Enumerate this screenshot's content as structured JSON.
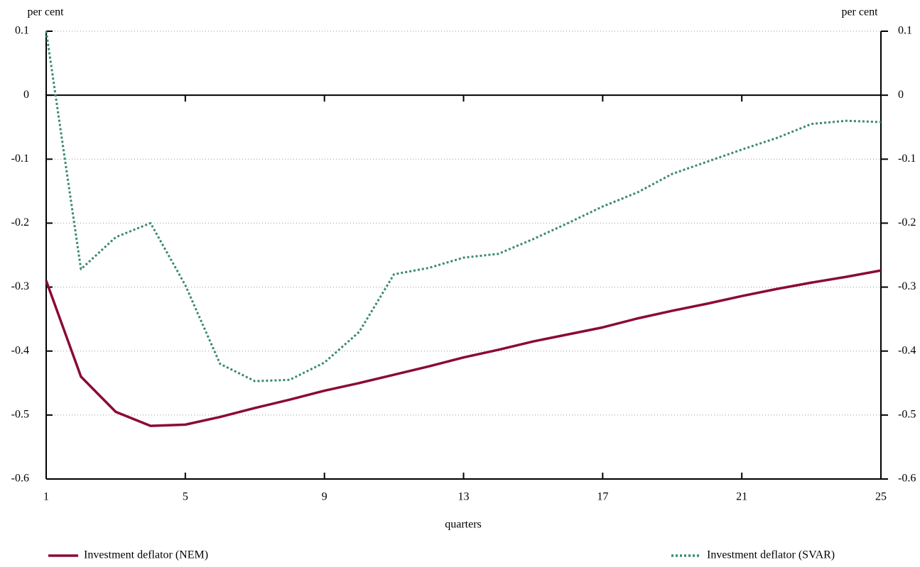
{
  "chart_data": {
    "type": "line",
    "ylabel": "per cent",
    "y2label": "per cent",
    "xlabel": "quarters",
    "x": [
      1,
      2,
      3,
      4,
      5,
      6,
      7,
      8,
      9,
      10,
      11,
      12,
      13,
      14,
      15,
      16,
      17,
      18,
      19,
      20,
      21,
      22,
      23,
      24,
      25
    ],
    "xlim": [
      1,
      25
    ],
    "xticks": [
      1,
      5,
      9,
      13,
      17,
      21,
      25
    ],
    "ylim": [
      -0.6,
      0.1
    ],
    "yticks": [
      0.1,
      0,
      -0.1,
      -0.2,
      -0.3,
      -0.4,
      -0.5,
      -0.6
    ],
    "y2lim": [
      -0.6,
      0.1
    ],
    "y2ticks": [
      0.1,
      0,
      -0.1,
      -0.2,
      -0.3,
      -0.4,
      -0.5,
      -0.6
    ],
    "grid": true,
    "legend": "bottom",
    "series": [
      {
        "name": "Investment deflator (NEM)",
        "color": "#8b0a32",
        "style": "solid",
        "values": [
          -0.29,
          -0.44,
          -0.495,
          -0.517,
          -0.515,
          -0.503,
          -0.489,
          -0.476,
          -0.462,
          -0.45,
          -0.437,
          -0.424,
          -0.41,
          -0.398,
          -0.385,
          -0.374,
          -0.363,
          -0.349,
          -0.337,
          -0.326,
          -0.314,
          -0.303,
          -0.293,
          -0.284,
          -0.274
        ]
      },
      {
        "name": "Investment deflator (SVAR)",
        "color": "#3a8a72",
        "style": "dotted",
        "values": [
          0.1,
          -0.272,
          -0.222,
          -0.2,
          -0.297,
          -0.42,
          -0.447,
          -0.445,
          -0.418,
          -0.37,
          -0.28,
          -0.27,
          -0.254,
          -0.248,
          -0.225,
          -0.2,
          -0.174,
          -0.152,
          -0.123,
          -0.104,
          -0.085,
          -0.067,
          -0.045,
          -0.04,
          -0.042
        ]
      }
    ]
  }
}
